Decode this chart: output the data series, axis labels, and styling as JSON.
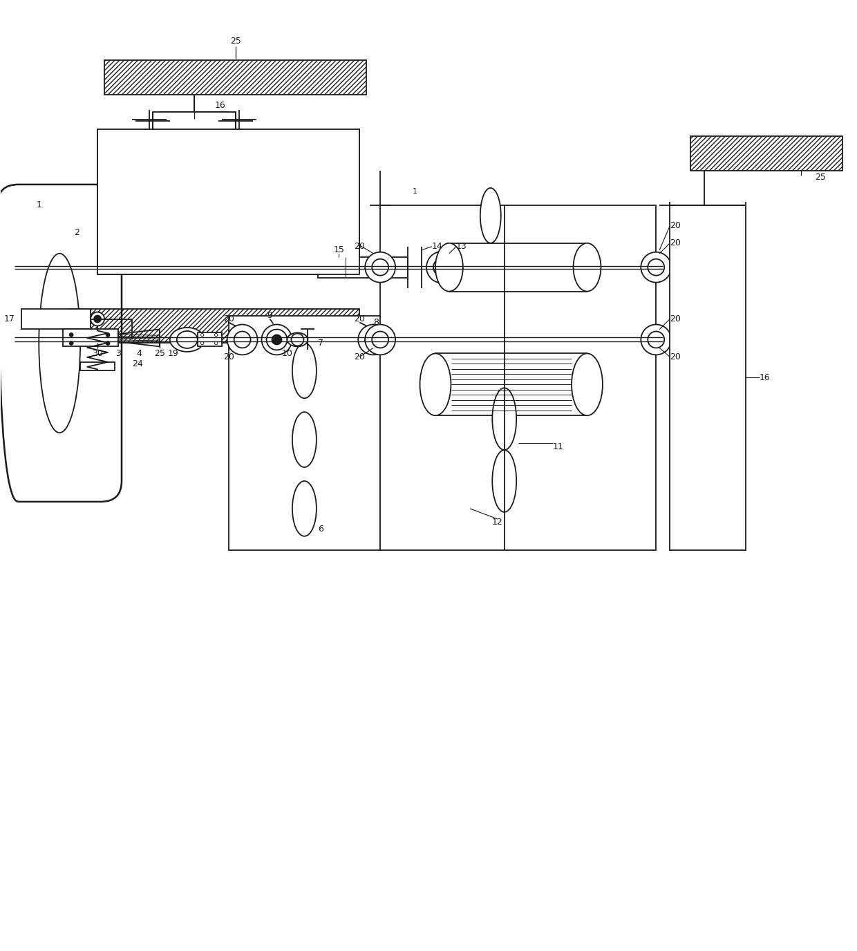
{
  "bg_color": "#ffffff",
  "lc": "#1a1a1a",
  "lw": 1.3,
  "fig_width": 12.4,
  "fig_height": 13.76,
  "xlim": [
    0,
    124
  ],
  "ylim": [
    0,
    137.6
  ]
}
